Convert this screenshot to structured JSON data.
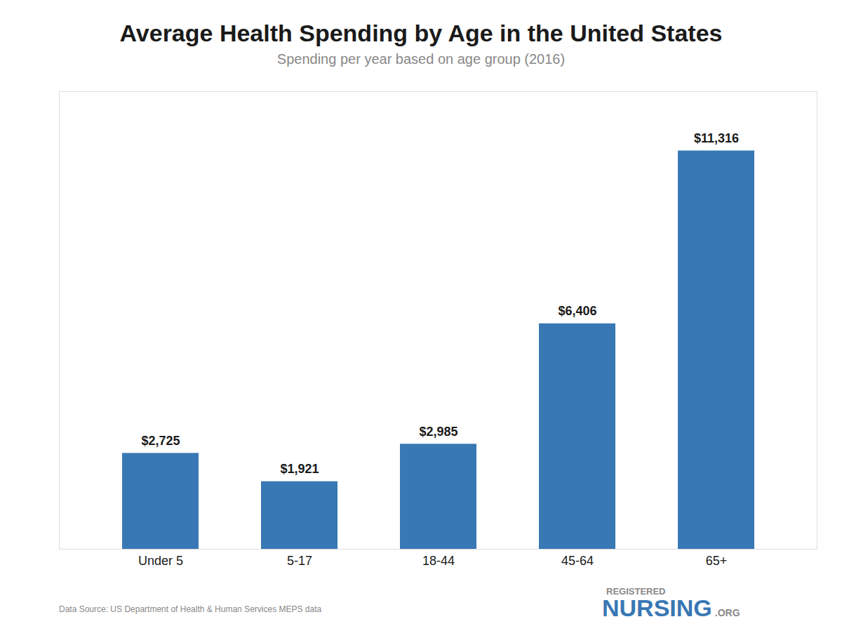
{
  "chart_data": {
    "type": "bar",
    "title": "Average Health Spending by Age in the United States",
    "subtitle": "Spending per year based on age group (2016)",
    "categories": [
      "Under 5",
      "5-17",
      "18-44",
      "45-64",
      "65+"
    ],
    "values": [
      2725,
      1921,
      2985,
      6406,
      11316
    ],
    "value_labels": [
      "$2,725",
      "$1,921",
      "$2,985",
      "$6,406",
      "$11,316"
    ],
    "color": "#3878b4",
    "ylim": [
      0,
      13000
    ],
    "grid": false,
    "data_labels": true,
    "tick_labels": "x",
    "annotations": [
      "Data Source: US Department of Health & Human Services MEPS data",
      "REGISTERED",
      "NURSING",
      ".ORG"
    ]
  }
}
